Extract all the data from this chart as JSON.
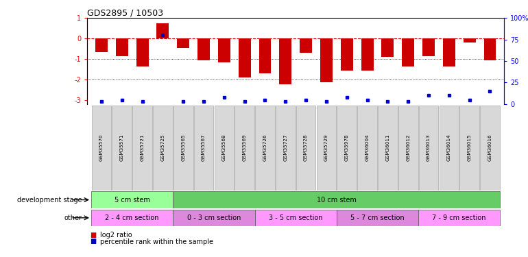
{
  "title": "GDS2895 / 10503",
  "samples": [
    "GSM35570",
    "GSM35571",
    "GSM35721",
    "GSM35725",
    "GSM35565",
    "GSM35567",
    "GSM35568",
    "GSM35569",
    "GSM35726",
    "GSM35727",
    "GSM35728",
    "GSM35729",
    "GSM35978",
    "GSM36004",
    "GSM36011",
    "GSM36012",
    "GSM36013",
    "GSM36014",
    "GSM36015",
    "GSM36016"
  ],
  "log2_ratio": [
    -0.65,
    -0.85,
    -1.35,
    0.75,
    -0.45,
    -1.05,
    -1.15,
    -1.9,
    -1.7,
    -2.25,
    -0.7,
    -2.15,
    -1.55,
    -1.55,
    -0.9,
    -1.35,
    -0.85,
    -1.35,
    -0.2,
    -1.05
  ],
  "percentile_rank": [
    3,
    5,
    3,
    80,
    3,
    3,
    8,
    3,
    5,
    3,
    5,
    3,
    8,
    5,
    3,
    3,
    10,
    10,
    5,
    15
  ],
  "bar_color": "#cc0000",
  "pct_color": "#0000cc",
  "ylim": [
    -3.2,
    1.0
  ],
  "y_right_ticks": [
    0,
    25,
    50,
    75,
    100
  ],
  "y_right_labels": [
    "0",
    "25",
    "50",
    "75",
    "100%"
  ],
  "y_left_ticks": [
    -3,
    -2,
    -1,
    0,
    1
  ],
  "hline_dotted": [
    -1,
    -2
  ],
  "dev_stage_groups": [
    {
      "label": "5 cm stem",
      "start": 0,
      "end": 4,
      "color": "#99ff99"
    },
    {
      "label": "10 cm stem",
      "start": 4,
      "end": 20,
      "color": "#66cc66"
    }
  ],
  "other_groups": [
    {
      "label": "2 - 4 cm section",
      "start": 0,
      "end": 4,
      "color": "#ff99ff"
    },
    {
      "label": "0 - 3 cm section",
      "start": 4,
      "end": 8,
      "color": "#dd88dd"
    },
    {
      "label": "3 - 5 cm section",
      "start": 8,
      "end": 12,
      "color": "#ff99ff"
    },
    {
      "label": "5 - 7 cm section",
      "start": 12,
      "end": 16,
      "color": "#dd88dd"
    },
    {
      "label": "7 - 9 cm section",
      "start": 16,
      "end": 20,
      "color": "#ff99ff"
    }
  ],
  "legend_items": [
    {
      "label": "log2 ratio",
      "color": "#cc0000"
    },
    {
      "label": "percentile rank within the sample",
      "color": "#0000cc"
    }
  ]
}
